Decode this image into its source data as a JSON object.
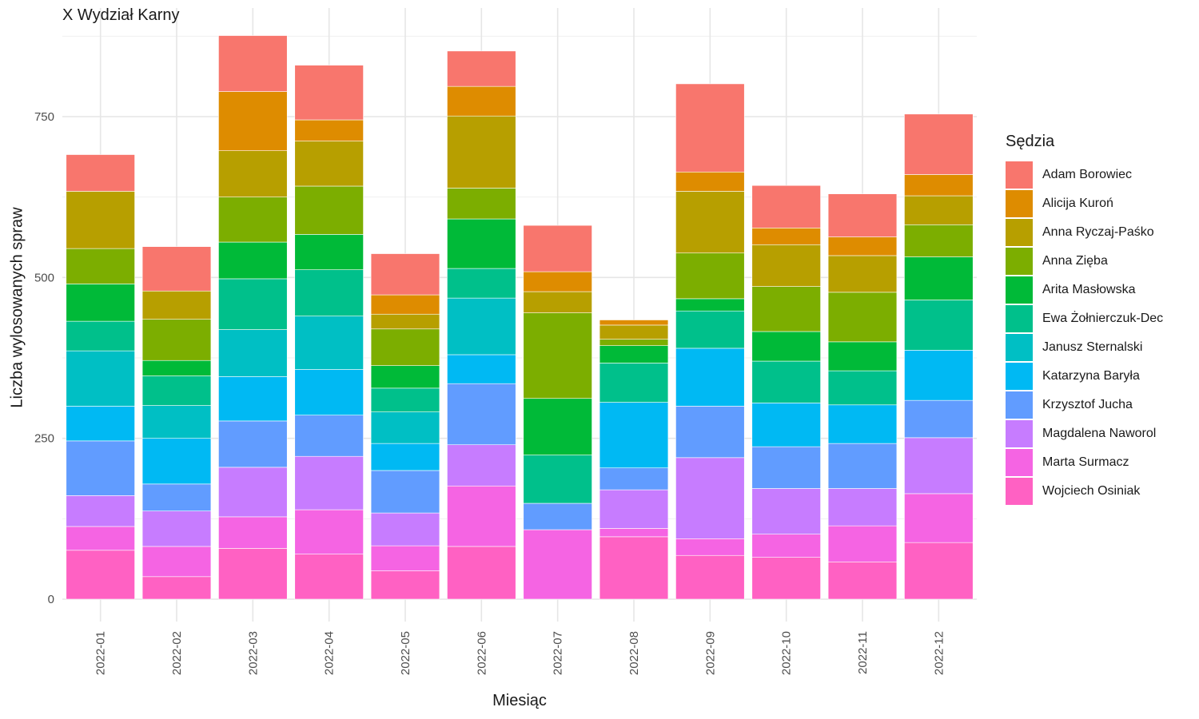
{
  "title": "X Wydział Karny",
  "chart_data": {
    "type": "bar",
    "stacked": true,
    "title": "X Wydział Karny",
    "xlabel": "Miesiąc",
    "ylabel": "Liczba wylosowanych spraw",
    "legend_title": "Sędzia",
    "legend_position": "right",
    "grid": true,
    "ylim": [
      0,
      880
    ],
    "yticks": [
      0,
      250,
      500,
      750
    ],
    "categories": [
      "2022-01",
      "2022-02",
      "2022-03",
      "2022-04",
      "2022-05",
      "2022-06",
      "2022-07",
      "2022-08",
      "2022-09",
      "2022-10",
      "2022-11",
      "2022-12"
    ],
    "series": [
      {
        "name": "Wojciech Osiniak",
        "color": "#FF61C3",
        "values": [
          76,
          35,
          79,
          70,
          44,
          82,
          0,
          97,
          68,
          65,
          58,
          88
        ]
      },
      {
        "name": "Marta Surmacz",
        "color": "#F564E3",
        "values": [
          37,
          47,
          49,
          69,
          39,
          94,
          108,
          13,
          26,
          36,
          56,
          76
        ]
      },
      {
        "name": "Magdalena Naworol",
        "color": "#C77CFF",
        "values": [
          48,
          55,
          77,
          83,
          51,
          64,
          0,
          60,
          126,
          71,
          58,
          87
        ]
      },
      {
        "name": "Krzysztof Jucha",
        "color": "#619CFF",
        "values": [
          85,
          42,
          72,
          64,
          66,
          95,
          41,
          34,
          80,
          65,
          70,
          58
        ]
      },
      {
        "name": "Katarzyna Baryła",
        "color": "#00B9F3",
        "values": [
          54,
          71,
          69,
          71,
          42,
          45,
          0,
          102,
          90,
          68,
          60,
          78
        ]
      },
      {
        "name": "Janusz Sternalski",
        "color": "#00BFC4",
        "values": [
          86,
          51,
          73,
          83,
          49,
          88,
          0,
          0,
          0,
          0,
          0,
          0
        ]
      },
      {
        "name": "Ewa Żołnierczuk-Dec",
        "color": "#00C08B",
        "values": [
          46,
          46,
          79,
          72,
          37,
          46,
          75,
          61,
          58,
          65,
          53,
          78
        ]
      },
      {
        "name": "Arita Masłowska",
        "color": "#00BA38",
        "values": [
          58,
          24,
          57,
          55,
          35,
          77,
          88,
          27,
          19,
          46,
          45,
          67
        ]
      },
      {
        "name": "Anna Zięba",
        "color": "#7CAE00",
        "values": [
          55,
          64,
          70,
          75,
          57,
          48,
          133,
          10,
          71,
          70,
          77,
          50
        ]
      },
      {
        "name": "Anna Ryczaj-Paśko",
        "color": "#B79F00",
        "values": [
          89,
          44,
          72,
          70,
          23,
          112,
          33,
          22,
          96,
          65,
          57,
          45
        ]
      },
      {
        "name": "Alicija Kuroń",
        "color": "#DE8C00",
        "values": [
          0,
          0,
          92,
          33,
          30,
          46,
          31,
          8,
          30,
          26,
          29,
          33
        ]
      },
      {
        "name": "Adam Borowiec",
        "color": "#F8766D",
        "values": [
          57,
          69,
          87,
          85,
          64,
          55,
          72,
          0,
          137,
          66,
          67,
          94
        ]
      }
    ]
  }
}
